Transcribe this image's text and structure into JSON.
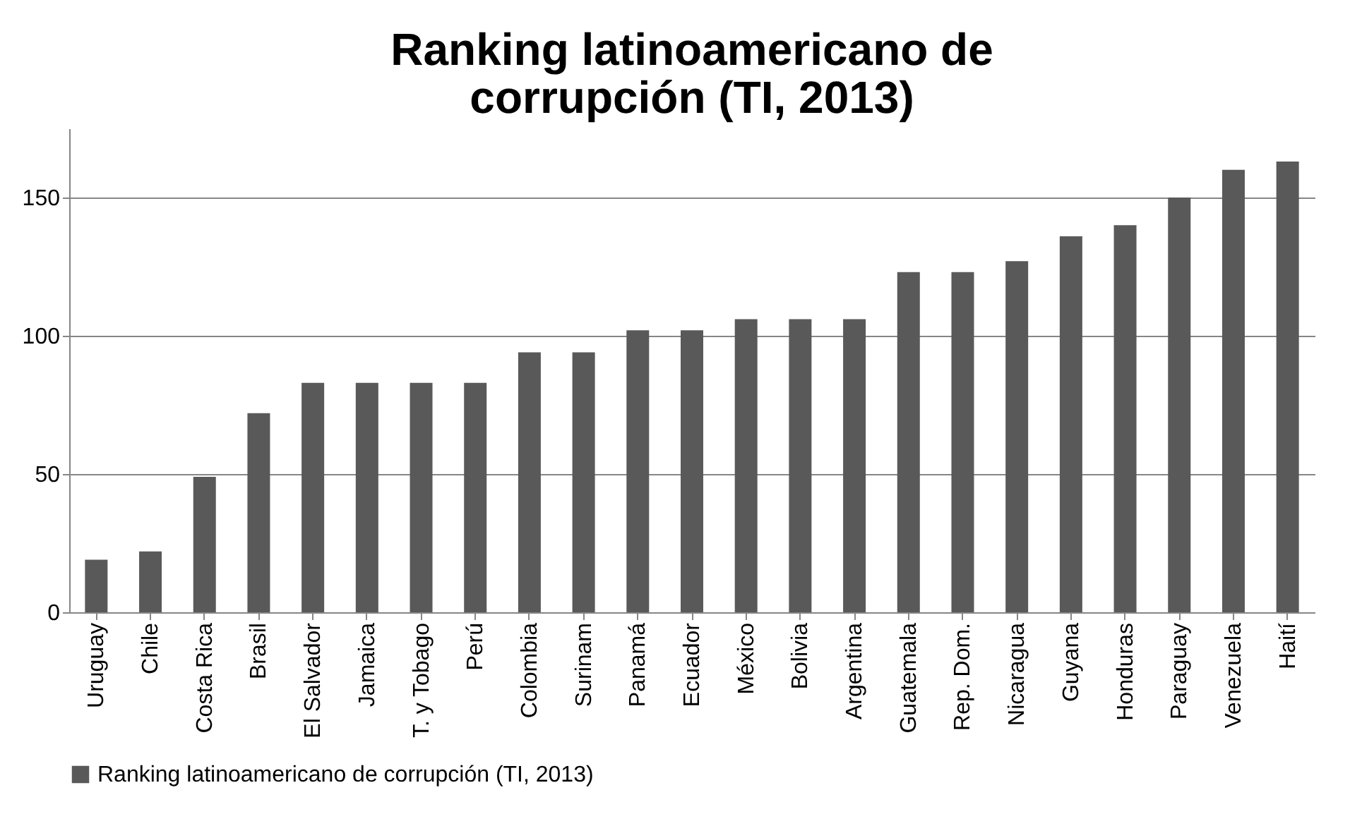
{
  "chart_data": {
    "type": "bar",
    "title": [
      "Ranking latinoamericano de",
      "corrupción (TI, 2013)"
    ],
    "categories": [
      "Uruguay",
      "Chile",
      "Costa Rica",
      "Brasil",
      "El Salvador",
      "Jamaica",
      "T. y Tobago",
      "Perú",
      "Colombia",
      "Surinam",
      "Panamá",
      "Ecuador",
      "México",
      "Bolivia",
      "Argentina",
      "Guatemala",
      "Rep. Dom.",
      "Nicaragua",
      "Guyana",
      "Honduras",
      "Paraguay",
      "Venezuela",
      "Haití"
    ],
    "series": [
      {
        "name": "Ranking latinoamericano de corrupción (TI, 2013)",
        "color": "#595959",
        "values": [
          19,
          22,
          49,
          72,
          83,
          83,
          83,
          83,
          94,
          94,
          102,
          102,
          106,
          106,
          106,
          123,
          123,
          127,
          136,
          140,
          150,
          160,
          163
        ]
      }
    ],
    "ylim": [
      0,
      175
    ],
    "yticks": [
      0,
      50,
      100,
      150
    ],
    "grid": "y",
    "legend": "bottom"
  }
}
